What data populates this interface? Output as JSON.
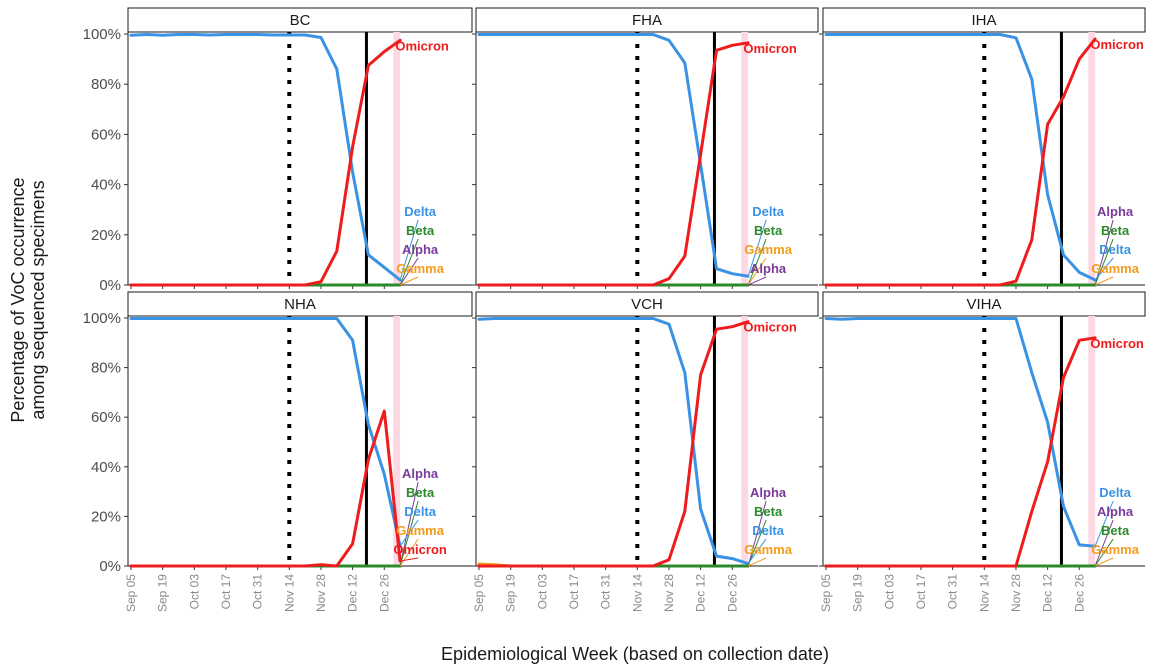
{
  "colors": {
    "Omicron": "#ee1c1c",
    "Delta": "#3a92e4",
    "Beta": "#2b8a2b",
    "Alpha": "#7a3a9a",
    "Gamma": "#f39c1b",
    "highlight": "#fcd9e2"
  },
  "chart_data": {
    "type": "line",
    "xlabel": "Epidemiological Week (based on collection date)",
    "ylabel_lines": [
      "Percentage of VoC occurrence",
      "among sequenced specimens"
    ],
    "x": [
      "Sep 05",
      "Sep 12",
      "Sep 19",
      "Sep 26",
      "Oct 03",
      "Oct 10",
      "Oct 17",
      "Oct 24",
      "Oct 31",
      "Nov 07",
      "Nov 14",
      "Nov 21",
      "Nov 28",
      "Dec 05",
      "Dec 12",
      "Dec 19",
      "Dec 26",
      "Jan 02"
    ],
    "x_tick_labels": [
      "Sep 05",
      "Sep 19",
      "Oct 03",
      "Oct 17",
      "Oct 31",
      "Nov 14",
      "Nov 28",
      "Dec 12",
      "Dec 26"
    ],
    "y_tick_labels": [
      "0%",
      "20%",
      "40%",
      "60%",
      "80%",
      "100%"
    ],
    "ylim": [
      0,
      100
    ],
    "grid": false,
    "reference_lines": [
      {
        "style": "dotted",
        "x": "Nov 14"
      },
      {
        "style": "solid",
        "x": "Dec 19",
        "x_by_panel": {
          "BC": "Dec 19",
          "FHA": "Dec 19",
          "IHA": "Dec 19",
          "NHA": "Dec 19",
          "VCH": "Dec 19",
          "VIHA": "Dec 19"
        }
      }
    ],
    "highlight_band": {
      "from": "Dec 30",
      "to": "Jan 02"
    },
    "panels": [
      {
        "title": "BC",
        "series": [
          {
            "name": "Delta",
            "values": [
              99.5,
              99.8,
              99.5,
              99.8,
              99.8,
              99.6,
              99.8,
              99.8,
              99.8,
              99.6,
              99.6,
              99.6,
              98.6,
              86,
              45,
              12,
              7,
              2
            ]
          },
          {
            "name": "Omicron",
            "values": [
              0,
              0,
              0,
              0,
              0,
              0,
              0,
              0,
              0,
              0,
              0,
              0,
              1.3,
              13.5,
              55,
              87.5,
              93,
              97.5
            ]
          },
          {
            "name": "Beta",
            "values": [
              0,
              0,
              0,
              0,
              0,
              0,
              0,
              0,
              0,
              0,
              0,
              0,
              0,
              0,
              0,
              0,
              0,
              0
            ]
          },
          {
            "name": "Alpha",
            "values": [
              0,
              0,
              0,
              0,
              0,
              0,
              0,
              0,
              0,
              0,
              0,
              0,
              0,
              0,
              0,
              0,
              0,
              0
            ]
          },
          {
            "name": "Gamma",
            "values": [
              0,
              0,
              0,
              0,
              0,
              0,
              0,
              0,
              0,
              0,
              0,
              0,
              0,
              0,
              0,
              0,
              0,
              0
            ]
          }
        ],
        "end_labels": [
          "Omicron",
          "Delta",
          "Beta",
          "Alpha",
          "Gamma"
        ]
      },
      {
        "title": "FHA",
        "series": [
          {
            "name": "Delta",
            "values": [
              99.8,
              99.8,
              99.8,
              99.8,
              99.8,
              99.8,
              99.8,
              99.8,
              99.8,
              99.8,
              99.8,
              99.8,
              97.5,
              88.5,
              48,
              6.5,
              4.5,
              3.5
            ]
          },
          {
            "name": "Omicron",
            "values": [
              0,
              0,
              0,
              0,
              0,
              0,
              0,
              0,
              0,
              0,
              0,
              0,
              2.5,
              11.5,
              52,
              93.5,
              95.5,
              96.5
            ]
          },
          {
            "name": "Gamma",
            "values": [
              0,
              0,
              0,
              0,
              0,
              0,
              0,
              0,
              0,
              0,
              0,
              0,
              0,
              0,
              0,
              0,
              0,
              0
            ]
          },
          {
            "name": "Beta",
            "values": [
              0,
              0,
              0,
              0,
              0,
              0,
              0,
              0,
              0,
              0,
              0,
              0,
              0,
              0,
              0,
              0,
              0,
              0
            ]
          },
          {
            "name": "Alpha",
            "values": [
              0,
              0,
              0,
              0,
              0,
              0,
              0,
              0,
              0,
              0,
              0,
              0,
              0,
              0,
              0,
              0,
              0,
              0
            ]
          }
        ],
        "end_labels": [
          "Omicron",
          "Delta",
          "Beta",
          "Gamma",
          "Alpha"
        ]
      },
      {
        "title": "IHA",
        "series": [
          {
            "name": "Delta",
            "values": [
              99.8,
              99.8,
              99.8,
              99.8,
              99.8,
              99.8,
              99.8,
              99.8,
              99.8,
              99.8,
              99.8,
              99.8,
              98.5,
              82,
              36,
              12,
              5,
              2
            ]
          },
          {
            "name": "Omicron",
            "values": [
              0,
              0,
              0,
              0,
              0,
              0,
              0,
              0,
              0,
              0,
              0,
              0,
              1.5,
              18,
              64,
              75,
              90,
              98
            ]
          },
          {
            "name": "Alpha",
            "values": [
              0,
              0,
              0,
              0,
              0,
              0,
              0,
              0,
              0,
              0,
              0,
              0,
              0,
              0,
              0,
              0,
              0,
              0
            ]
          },
          {
            "name": "Beta",
            "values": [
              0,
              0,
              0,
              0,
              0,
              0,
              0,
              0,
              0,
              0,
              0,
              0,
              0,
              0,
              0,
              0,
              0,
              0
            ]
          },
          {
            "name": "Gamma",
            "values": [
              0,
              0,
              0,
              0,
              0,
              0,
              0,
              0,
              0,
              0,
              0,
              0,
              0,
              0,
              0,
              0,
              0,
              0
            ]
          }
        ],
        "end_labels": [
          "Omicron",
          "Alpha",
          "Beta",
          "Delta",
          "Gamma"
        ]
      },
      {
        "title": "NHA",
        "series": [
          {
            "name": "Delta",
            "values": [
              99.8,
              99.8,
              99.8,
              99.8,
              99.8,
              99.8,
              99.8,
              99.8,
              99.8,
              99.8,
              99.8,
              99.8,
              99.8,
              99.8,
              91,
              57,
              37,
              8
            ]
          },
          {
            "name": "Omicron",
            "values": [
              0,
              0,
              0,
              0,
              0,
              0,
              0,
              0,
              0,
              0,
              0,
              0,
              0.5,
              0,
              9,
              43,
              62.5,
              2
            ]
          },
          {
            "name": "Alpha",
            "values": [
              0,
              0,
              0,
              0,
              0,
              0,
              0,
              0,
              0,
              0,
              0,
              0,
              0,
              0,
              0,
              0,
              0,
              0
            ]
          },
          {
            "name": "Beta",
            "values": [
              0,
              0,
              0,
              0,
              0,
              0,
              0,
              0,
              0,
              0,
              0,
              0,
              0,
              0,
              0,
              0,
              0,
              0
            ]
          },
          {
            "name": "Gamma",
            "values": [
              0,
              0,
              0,
              0,
              0,
              0,
              0,
              0,
              0,
              0,
              0,
              0,
              0,
              0,
              0,
              0,
              0,
              0
            ]
          }
        ],
        "end_labels": [
          "Alpha",
          "Beta",
          "Delta",
          "Gamma",
          "Omicron"
        ]
      },
      {
        "title": "VCH",
        "series": [
          {
            "name": "Delta",
            "values": [
              99.5,
              99.8,
              99.8,
              99.8,
              99.8,
              99.8,
              99.8,
              99.8,
              99.8,
              99.8,
              99.8,
              99.8,
              97.5,
              78,
              23,
              4,
              3,
              1
            ]
          },
          {
            "name": "Omicron",
            "values": [
              0,
              0,
              0,
              0,
              0,
              0,
              0,
              0,
              0,
              0,
              0,
              0,
              2.5,
              22,
              77,
              95.5,
              96.5,
              98.5
            ]
          },
          {
            "name": "Alpha",
            "values": [
              0,
              0,
              0,
              0,
              0,
              0,
              0,
              0,
              0,
              0,
              0,
              0,
              0,
              0,
              0,
              0,
              0,
              0
            ]
          },
          {
            "name": "Beta",
            "values": [
              0,
              0,
              0,
              0,
              0,
              0,
              0,
              0,
              0,
              0,
              0,
              0,
              0,
              0,
              0,
              0,
              0,
              0
            ]
          },
          {
            "name": "Gamma",
            "values": [
              0.8,
              0.5,
              0,
              0,
              0,
              0,
              0,
              0,
              0,
              0,
              0,
              0,
              0,
              0,
              0,
              0,
              0,
              0
            ]
          }
        ],
        "end_labels": [
          "Omicron",
          "Alpha",
          "Beta",
          "Delta",
          "Gamma"
        ]
      },
      {
        "title": "VIHA",
        "series": [
          {
            "name": "Delta",
            "values": [
              99.8,
              99.5,
              99.8,
              99.8,
              99.8,
              99.8,
              99.8,
              99.8,
              99.8,
              99.8,
              99.8,
              99.8,
              99.8,
              78,
              58,
              24,
              8.5,
              8
            ]
          },
          {
            "name": "Omicron",
            "values": [
              0,
              0,
              0,
              0,
              0,
              0,
              0,
              0,
              0,
              0,
              0,
              0,
              0,
              22,
              42,
              76,
              91,
              92
            ]
          },
          {
            "name": "Alpha",
            "values": [
              0,
              0,
              0,
              0,
              0,
              0,
              0,
              0,
              0,
              0,
              0,
              0,
              0,
              0,
              0,
              0,
              0,
              0
            ]
          },
          {
            "name": "Beta",
            "values": [
              0,
              0,
              0,
              0,
              0,
              0,
              0,
              0,
              0,
              0,
              0,
              0,
              0,
              0,
              0,
              0,
              0,
              0
            ]
          },
          {
            "name": "Gamma",
            "values": [
              0,
              0,
              0,
              0,
              0,
              0,
              0,
              0,
              0,
              0,
              0,
              0,
              0,
              0,
              0,
              0,
              0,
              0
            ]
          }
        ],
        "end_labels": [
          "Omicron",
          "Delta",
          "Alpha",
          "Beta",
          "Gamma"
        ]
      }
    ]
  }
}
